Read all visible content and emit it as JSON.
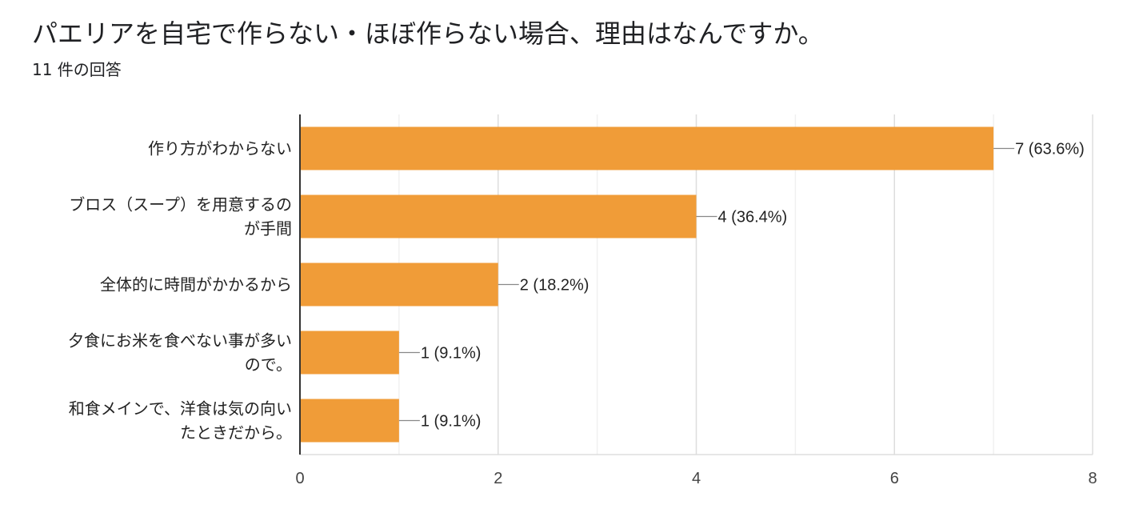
{
  "title": "パエリアを自宅で作らない・ほぼ作らない場合、理由はなんですか。",
  "subtitle": "11 件の回答",
  "chart_data": {
    "type": "bar",
    "orientation": "horizontal",
    "categories": [
      [
        "作り方がわからない"
      ],
      [
        "ブロス（スープ）を用意するの",
        "が手間"
      ],
      [
        "全体的に時間がかかるから"
      ],
      [
        "夕食にお米を食べない事が多い",
        "ので。"
      ],
      [
        "和食メインで、洋食は気の向い",
        "たときだから。"
      ]
    ],
    "values": [
      7,
      4,
      2,
      1,
      1
    ],
    "value_labels": [
      "7 (63.6%)",
      "4 (36.4%)",
      "2 (18.2%)",
      "1 (9.1%)",
      "1 (9.1%)"
    ],
    "xlim": [
      0,
      8
    ],
    "x_ticks": [
      0,
      2,
      4,
      6,
      8
    ],
    "grid": true,
    "bar_color": "#f09c38"
  }
}
